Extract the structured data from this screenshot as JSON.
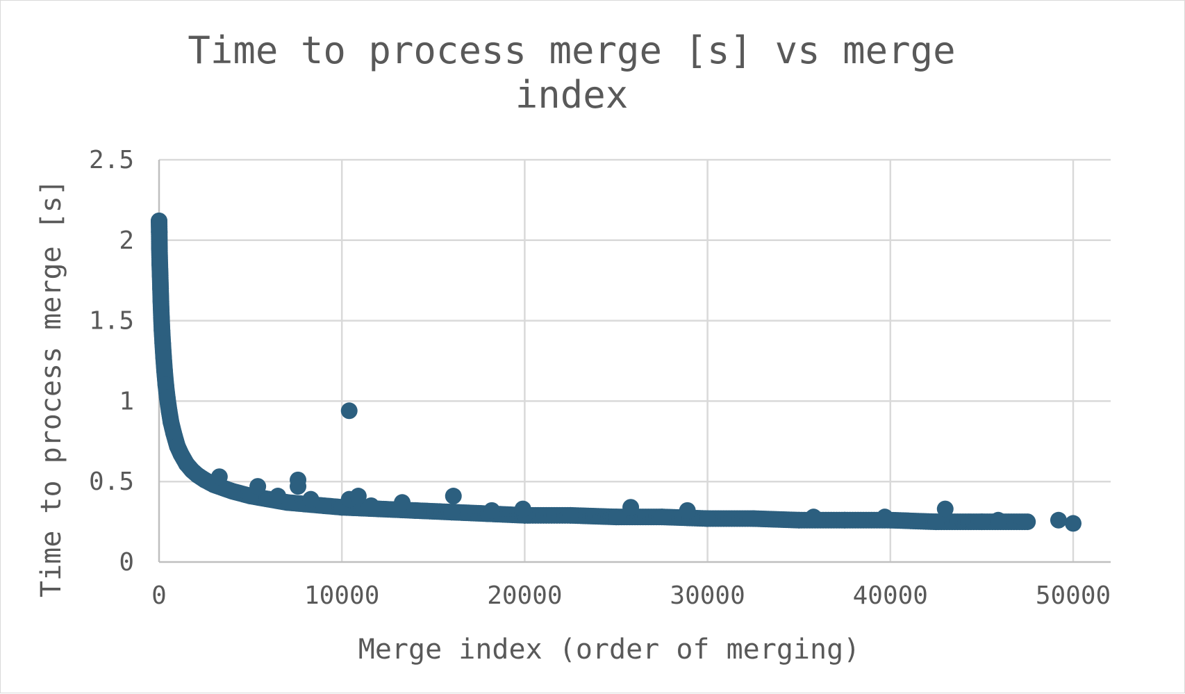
{
  "chart_data": {
    "type": "scatter",
    "title": "Time to process merge [s] vs merge index",
    "title_lines": [
      "Time to process merge [s] vs merge",
      "index"
    ],
    "xlabel": "Merge index (order of merging)",
    "ylabel": "Time to process merge [s]",
    "xlim": [
      0,
      52000
    ],
    "ylim": [
      0,
      2.5
    ],
    "x_ticks": [
      0,
      10000,
      20000,
      30000,
      40000,
      50000
    ],
    "x_tick_labels": [
      "0",
      "10000",
      "20000",
      "30000",
      "40000",
      "50000"
    ],
    "y_ticks": [
      0,
      0.5,
      1,
      1.5,
      2,
      2.5
    ],
    "y_tick_labels": [
      "0",
      "0.5",
      "1",
      "1.5",
      "2",
      "2.5"
    ],
    "grid": true,
    "legend": "none",
    "series": [
      {
        "color": "#2c5f7f",
        "points": [
          [
            0,
            2.12
          ],
          [
            10,
            2.05
          ],
          [
            20,
            1.95
          ],
          [
            40,
            1.85
          ],
          [
            60,
            1.78
          ],
          [
            80,
            1.7
          ],
          [
            100,
            1.62
          ],
          [
            130,
            1.52
          ],
          [
            160,
            1.44
          ],
          [
            200,
            1.36
          ],
          [
            250,
            1.27
          ],
          [
            300,
            1.19
          ],
          [
            370,
            1.1
          ],
          [
            450,
            1.02
          ],
          [
            550,
            0.94
          ],
          [
            650,
            0.87
          ],
          [
            800,
            0.8
          ],
          [
            1000,
            0.72
          ],
          [
            1200,
            0.67
          ],
          [
            1500,
            0.61
          ],
          [
            1800,
            0.57
          ],
          [
            2100,
            0.54
          ],
          [
            2500,
            0.51
          ],
          [
            3000,
            0.48
          ],
          [
            3500,
            0.46
          ],
          [
            4000,
            0.44
          ],
          [
            5000,
            0.41
          ],
          [
            6000,
            0.39
          ],
          [
            7000,
            0.37
          ],
          [
            8000,
            0.36
          ],
          [
            9000,
            0.35
          ],
          [
            10000,
            0.34
          ],
          [
            12000,
            0.33
          ],
          [
            14000,
            0.32
          ],
          [
            16000,
            0.31
          ],
          [
            18000,
            0.3
          ],
          [
            20000,
            0.29
          ],
          [
            22500,
            0.29
          ],
          [
            25000,
            0.28
          ],
          [
            27500,
            0.28
          ],
          [
            30000,
            0.27
          ],
          [
            32500,
            0.27
          ],
          [
            35000,
            0.26
          ],
          [
            37500,
            0.26
          ],
          [
            40000,
            0.26
          ],
          [
            42500,
            0.25
          ],
          [
            45000,
            0.25
          ],
          [
            47500,
            0.25
          ],
          [
            50000,
            0.24
          ],
          [
            3300,
            0.53
          ],
          [
            5400,
            0.47
          ],
          [
            6500,
            0.41
          ],
          [
            7600,
            0.51
          ],
          [
            7600,
            0.47
          ],
          [
            8300,
            0.39
          ],
          [
            10400,
            0.94
          ],
          [
            10400,
            0.39
          ],
          [
            10900,
            0.41
          ],
          [
            11600,
            0.35
          ],
          [
            13300,
            0.37
          ],
          [
            16100,
            0.41
          ],
          [
            18200,
            0.32
          ],
          [
            19900,
            0.33
          ],
          [
            25800,
            0.34
          ],
          [
            28900,
            0.32
          ],
          [
            35800,
            0.28
          ],
          [
            39700,
            0.28
          ],
          [
            43000,
            0.33
          ],
          [
            45900,
            0.26
          ],
          [
            49200,
            0.26
          ]
        ]
      }
    ]
  }
}
